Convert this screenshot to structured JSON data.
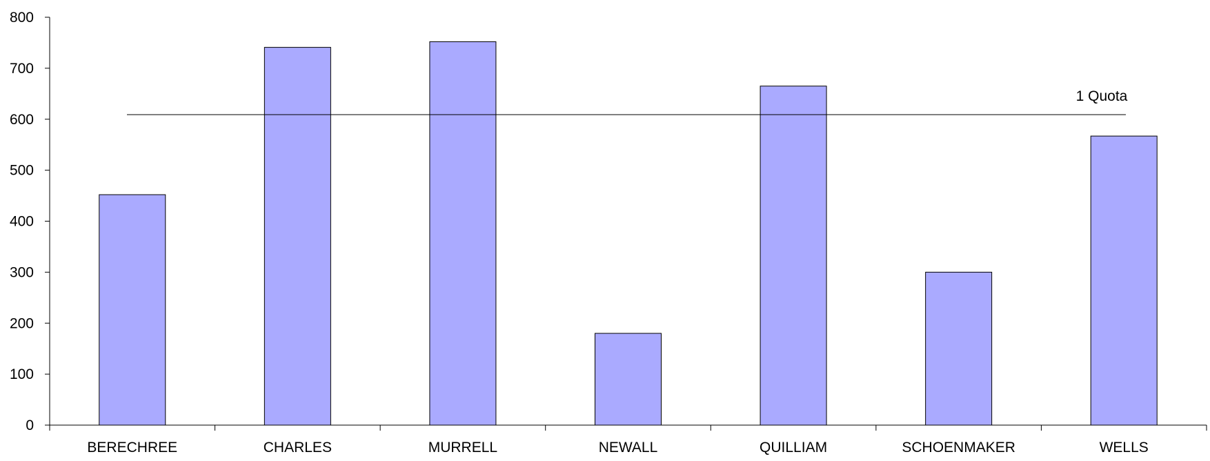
{
  "chart_data": {
    "type": "bar",
    "categories": [
      "BERECHREE",
      "CHARLES",
      "MURRELL",
      "NEWALL",
      "QUILLIAM",
      "SCHOENMAKER",
      "WELLS"
    ],
    "values": [
      452,
      741,
      752,
      180,
      665,
      300,
      567
    ],
    "title": "",
    "xlabel": "",
    "ylabel": "",
    "ylim": [
      0,
      800
    ],
    "yticks": [
      0,
      100,
      200,
      300,
      400,
      500,
      600,
      700,
      800
    ],
    "grid": false,
    "legend": "none",
    "bar_color": "#aaaaff",
    "bar_edge_color": "#000000",
    "reference_line": {
      "label": "1 Quota",
      "value": 609
    }
  }
}
